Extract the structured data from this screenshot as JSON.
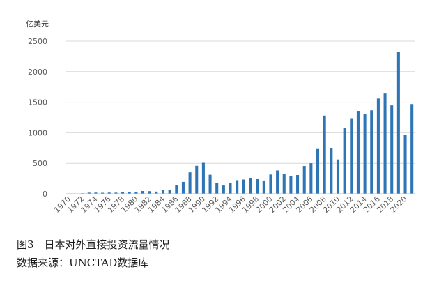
{
  "chart_data": {
    "type": "bar",
    "title": "",
    "ylabel": "亿美元",
    "xlabel": "",
    "ylim": [
      0,
      2500
    ],
    "yticks": [
      0,
      500,
      1000,
      1500,
      2000,
      2500
    ],
    "grid": true,
    "legend": "none",
    "bar_color": "#2e75b6",
    "categories": [
      "1970",
      "1971",
      "1972",
      "1973",
      "1974",
      "1975",
      "1976",
      "1977",
      "1978",
      "1979",
      "1980",
      "1981",
      "1982",
      "1983",
      "1984",
      "1985",
      "1986",
      "1987",
      "1988",
      "1989",
      "1990",
      "1991",
      "1992",
      "1993",
      "1994",
      "1995",
      "1996",
      "1997",
      "1998",
      "1999",
      "2000",
      "2001",
      "2002",
      "2003",
      "2004",
      "2005",
      "2006",
      "2007",
      "2008",
      "2009",
      "2010",
      "2011",
      "2012",
      "2013",
      "2014",
      "2015",
      "2016",
      "2017",
      "2018",
      "2019",
      "2020",
      "2021"
    ],
    "values": [
      4,
      3,
      9,
      19,
      20,
      17,
      20,
      19,
      23,
      29,
      25,
      45,
      43,
      36,
      58,
      64,
      145,
      195,
      352,
      459,
      508,
      312,
      173,
      136,
      181,
      223,
      234,
      257,
      240,
      218,
      316,
      383,
      322,
      288,
      308,
      456,
      501,
      734,
      1281,
      748,
      563,
      1074,
      1227,
      1358,
      1309,
      1367,
      1560,
      1642,
      1448,
      2325,
      961,
      1470
    ],
    "tick_labels": [
      "1970",
      "1972",
      "1974",
      "1976",
      "1978",
      "1980",
      "1982",
      "1984",
      "1986",
      "1988",
      "1990",
      "1992",
      "1994",
      "1996",
      "1998",
      "2000",
      "2002",
      "2004",
      "2006",
      "2008",
      "2010",
      "2012",
      "2014",
      "2016",
      "2018",
      "2020"
    ],
    "y_tick_labels": [
      "0",
      "500",
      "1000",
      "1500",
      "2000",
      "2500"
    ]
  },
  "caption": {
    "figure_label": "图3　日本对外直接投资流量情况",
    "source": "数据来源：UNCTAD数据库"
  }
}
